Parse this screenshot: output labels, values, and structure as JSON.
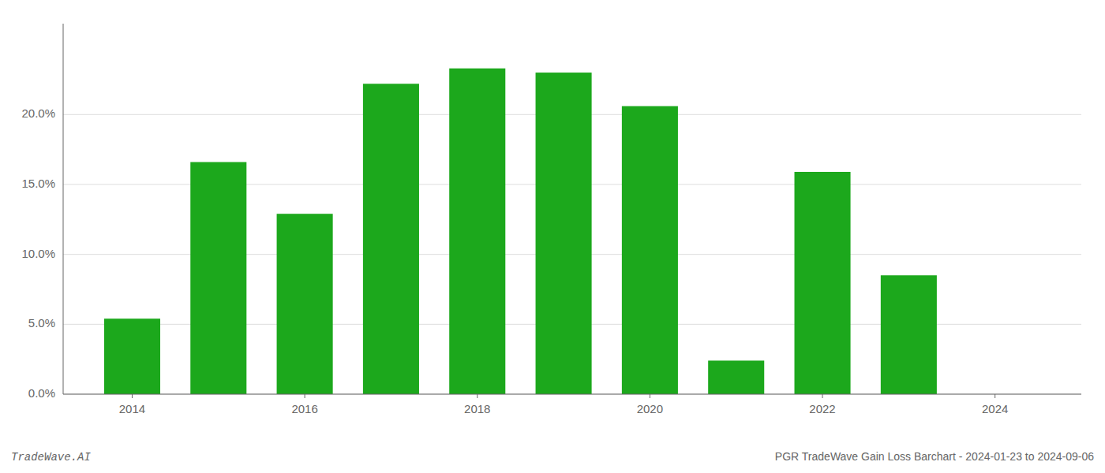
{
  "chart_data": {
    "type": "bar",
    "title": "PGR TradeWave Gain Loss Barchart - 2024-01-23 to 2024-09-06",
    "annotations": [
      "TradeWave.AI"
    ],
    "x": [
      2014,
      2015,
      2016,
      2017,
      2018,
      2019,
      2020,
      2021,
      2022,
      2023
    ],
    "values": [
      0.054,
      0.166,
      0.129,
      0.222,
      0.233,
      0.23,
      0.206,
      0.024,
      0.159,
      0.085
    ],
    "color": "#1ca81c",
    "xlim": [
      2013.2,
      2025.0
    ],
    "xticks": [
      2014,
      2016,
      2018,
      2020,
      2022,
      2024
    ],
    "ylim": [
      0,
      0.265
    ],
    "yticks": [
      {
        "value": 0.0,
        "label": "0.0%"
      },
      {
        "value": 0.05,
        "label": "5.0%"
      },
      {
        "value": 0.1,
        "label": "10.0%"
      },
      {
        "value": 0.15,
        "label": "15.0%"
      },
      {
        "value": 0.2,
        "label": "20.0%"
      }
    ],
    "grid": true
  }
}
